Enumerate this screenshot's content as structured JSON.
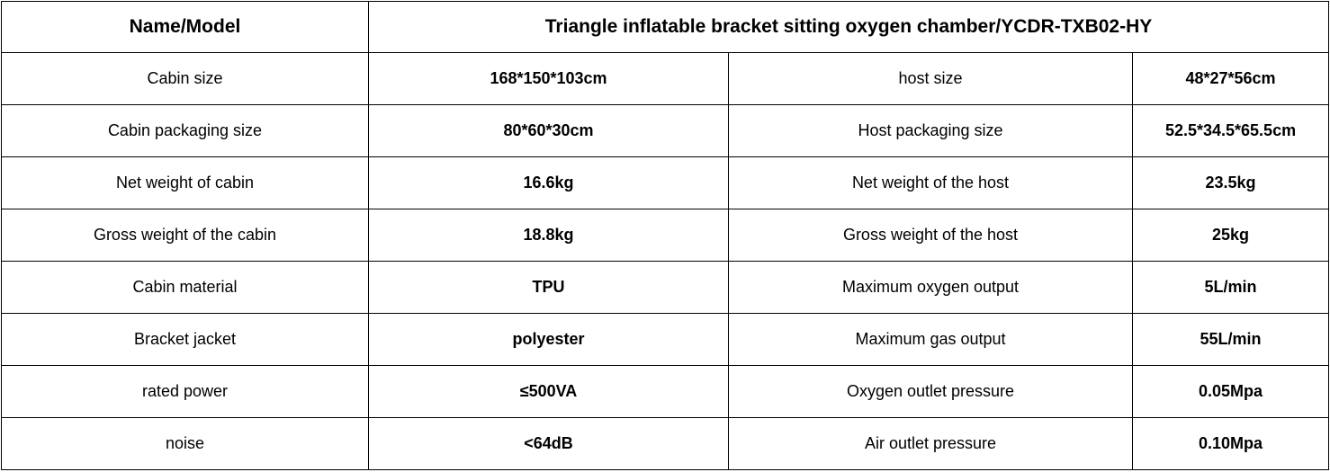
{
  "table": {
    "header": [
      "Name/Model",
      "Triangle inflatable bracket sitting oxygen chamber/YCDR-TXB02-HY"
    ],
    "rows": [
      [
        "Cabin size",
        "168*150*103cm",
        "host size",
        "48*27*56cm"
      ],
      [
        "Cabin packaging size",
        "80*60*30cm",
        "Host packaging size",
        "52.5*34.5*65.5cm"
      ],
      [
        "Net weight of cabin",
        "16.6kg",
        "Net weight of the host",
        "23.5kg"
      ],
      [
        "Gross weight of the cabin",
        "18.8kg",
        "Gross weight of the host",
        "25kg"
      ],
      [
        "Cabin material",
        "TPU",
        "Maximum oxygen output",
        "5L/min"
      ],
      [
        "Bracket jacket",
        "polyester",
        "Maximum gas output",
        "55L/min"
      ],
      [
        "rated power",
        "≤500VA",
        "Oxygen outlet pressure",
        "0.05Mpa"
      ],
      [
        "noise",
        "<64dB",
        "Air outlet pressure",
        "0.10Mpa"
      ]
    ]
  }
}
